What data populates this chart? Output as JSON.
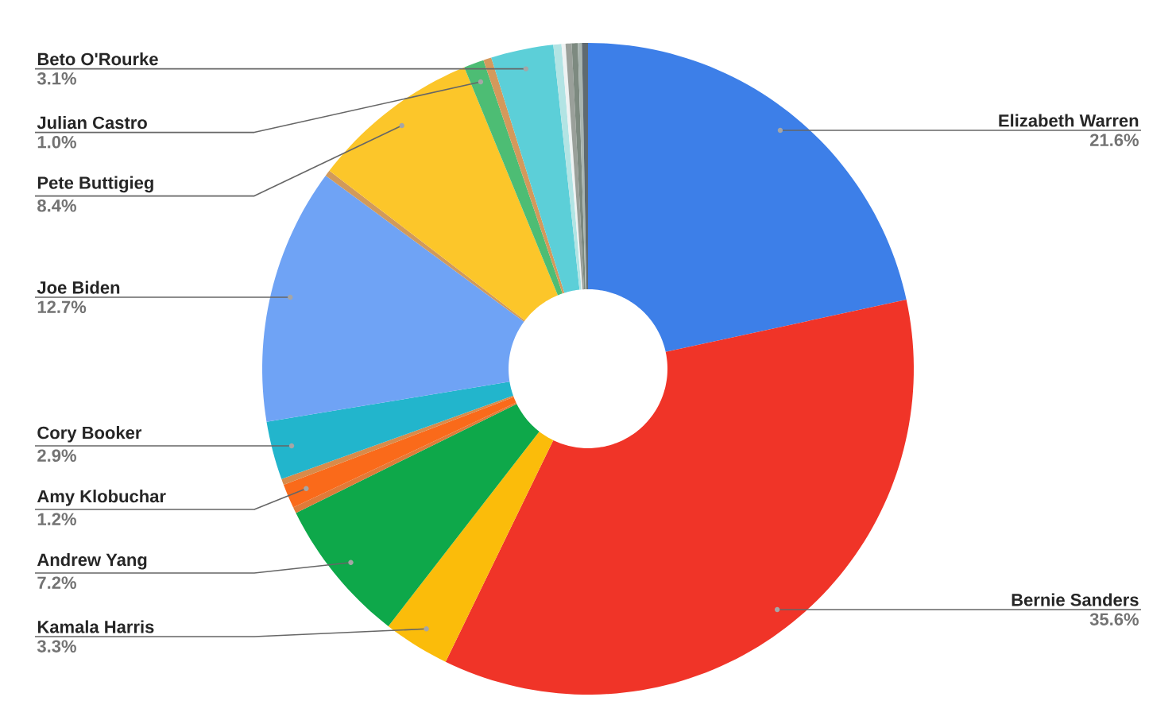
{
  "chart_data": {
    "type": "donut",
    "categories": [
      "Elizabeth Warren",
      "Bernie Sanders",
      "Kamala Harris",
      "Andrew Yang",
      null,
      "Amy Klobuchar",
      null,
      "Cory Booker",
      "Joe Biden",
      null,
      "Pete Buttigieg",
      "Julian Castro",
      null,
      "Beto O'Rourke",
      null,
      null,
      null,
      null,
      null,
      null
    ],
    "values": [
      21.6,
      35.6,
      3.3,
      7.2,
      0.3,
      1.2,
      0.3,
      2.9,
      12.7,
      0.3,
      8.4,
      1.0,
      0.4,
      3.1,
      0.4,
      0.2,
      0.3,
      0.3,
      0.2,
      0.3
    ],
    "value_labels": [
      "21.6%",
      "35.6%",
      "3.3%",
      "7.2%",
      null,
      "1.2%",
      null,
      "2.9%",
      "12.7%",
      null,
      "8.4%",
      "1.0%",
      null,
      "3.1%",
      null,
      null,
      null,
      null,
      null,
      null
    ],
    "colors": [
      "#3d7fe8",
      "#f03428",
      "#fbbc0a",
      "#0ea84a",
      "#e07b39",
      "#fa6a1a",
      "#d98b4a",
      "#22b5cc",
      "#6fa3f5",
      "#d19a5b",
      "#fcc62a",
      "#4dbd74",
      "#d4995c",
      "#5ccfd8",
      "#b2e4e4",
      "#eef2f2",
      "#9aa09a",
      "#7d8a80",
      "#a9b5b0",
      "#5f6a70"
    ]
  }
}
